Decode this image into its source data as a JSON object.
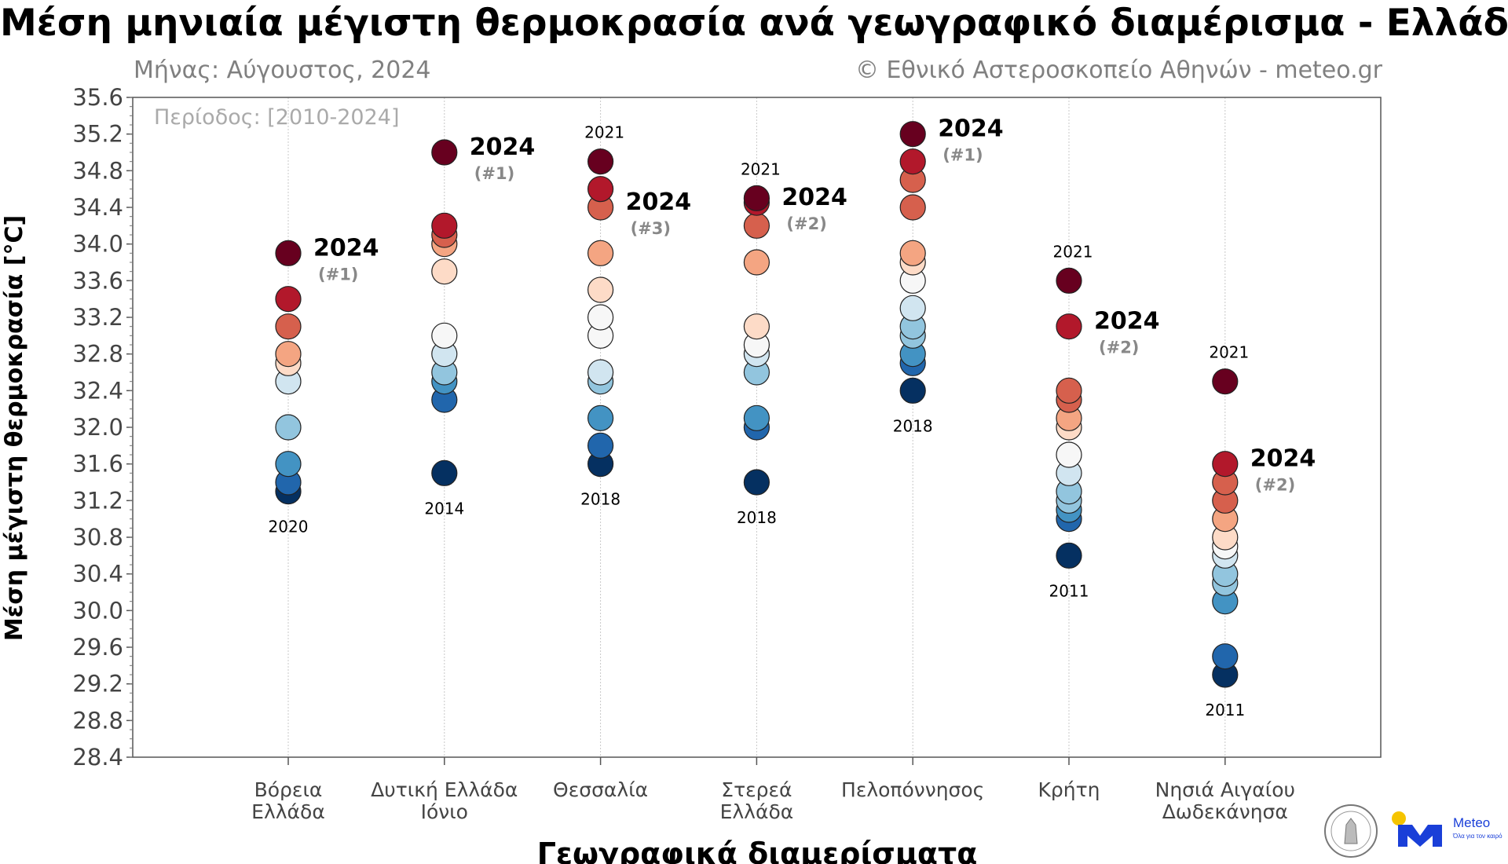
{
  "chart_data": {
    "type": "scatter",
    "title": "Μέση μηνιαία μέγιστη θερμοκρασία ανά γεωγραφικό διαμέρισμα - Ελλάδα",
    "subtitle_left": "Μήνας: Αύγουστος, 2024",
    "subtitle_right": "© Εθνικό Αστεροσκοπείο Αθηνών - meteo.gr",
    "period_label": "Περίοδος: [2010-2024]",
    "xlabel": "Γεωγραφικά διαμερίσματα",
    "ylabel": "Μέση μέγιστη θερμοκρασία [°C]",
    "ylim": [
      28.4,
      35.6
    ],
    "yticks": [
      "35.6",
      "35.2",
      "34.8",
      "34.4",
      "34.0",
      "33.6",
      "33.2",
      "32.8",
      "32.4",
      "32.0",
      "31.6",
      "31.2",
      "30.8",
      "30.4",
      "30.0",
      "29.6",
      "29.2",
      "28.8",
      "28.4"
    ],
    "grid": "vertical dotted",
    "colormap": [
      "#053061",
      "#2166ac",
      "#4393c3",
      "#92c5de",
      "#d1e5f0",
      "#f7f7f7",
      "#fddbc7",
      "#f4a582",
      "#d6604d",
      "#b2182b",
      "#67001f"
    ],
    "regions": [
      {
        "name": [
          "Βόρεια",
          "Ελλάδα"
        ],
        "values": [
          33.9,
          33.4,
          33.1,
          32.8,
          32.7,
          32.5,
          32.0,
          31.6,
          31.4,
          31.3
        ],
        "max_label": "",
        "min_label": "2020",
        "highlight": {
          "year": "2024",
          "rank": "(#1)",
          "value": 33.9
        }
      },
      {
        "name": [
          "Δυτική Ελλάδα",
          "Ιόνιο"
        ],
        "values": [
          35.0,
          34.2,
          34.1,
          34.0,
          33.7,
          33.0,
          32.8,
          32.6,
          32.5,
          32.3,
          31.5
        ],
        "max_label": "",
        "min_label": "2014",
        "highlight": {
          "year": "2024",
          "rank": "(#1)",
          "value": 35.0
        }
      },
      {
        "name": [
          "Θεσσαλία",
          ""
        ],
        "values": [
          34.9,
          34.6,
          34.4,
          33.9,
          33.5,
          33.2,
          33.0,
          32.6,
          32.5,
          32.1,
          31.8,
          31.6
        ],
        "max_label": "2021",
        "min_label": "2018",
        "highlight": {
          "year": "2024",
          "rank": "(#3)",
          "value": 34.4
        }
      },
      {
        "name": [
          "Στερεά",
          "Ελλάδα"
        ],
        "values": [
          34.5,
          34.45,
          34.2,
          33.8,
          33.1,
          32.9,
          32.8,
          32.6,
          32.1,
          32.0,
          31.4
        ],
        "max_label": "2021",
        "min_label": "2018",
        "highlight": {
          "year": "2024",
          "rank": "(#2)",
          "value": 34.45
        }
      },
      {
        "name": [
          "Πελοπόννησος",
          ""
        ],
        "values": [
          35.2,
          34.9,
          34.7,
          34.4,
          33.9,
          33.8,
          33.6,
          33.3,
          33.1,
          33.0,
          32.8,
          32.7,
          32.4
        ],
        "max_label": "",
        "min_label": "2018",
        "highlight": {
          "year": "2024",
          "rank": "(#1)",
          "value": 35.2
        }
      },
      {
        "name": [
          "Κρήτη",
          ""
        ],
        "values": [
          33.6,
          33.1,
          32.4,
          32.3,
          32.1,
          32.0,
          31.7,
          31.5,
          31.3,
          31.2,
          31.1,
          31.0,
          30.6
        ],
        "max_label": "2021",
        "min_label": "2011",
        "highlight": {
          "year": "2024",
          "rank": "(#2)",
          "value": 33.1
        }
      },
      {
        "name": [
          "Νησιά Αιγαίου",
          "Δωδεκάνησα"
        ],
        "values": [
          32.5,
          31.6,
          31.4,
          31.2,
          31.0,
          30.8,
          30.7,
          30.6,
          30.4,
          30.3,
          30.1,
          29.5,
          29.3
        ],
        "max_label": "2021",
        "min_label": "2011",
        "highlight": {
          "year": "2024",
          "rank": "(#2)",
          "value": 31.6
        }
      }
    ]
  },
  "logos": {
    "meteo_text": "Meteo",
    "meteo_tagline": "Όλα για τον καιρό"
  }
}
